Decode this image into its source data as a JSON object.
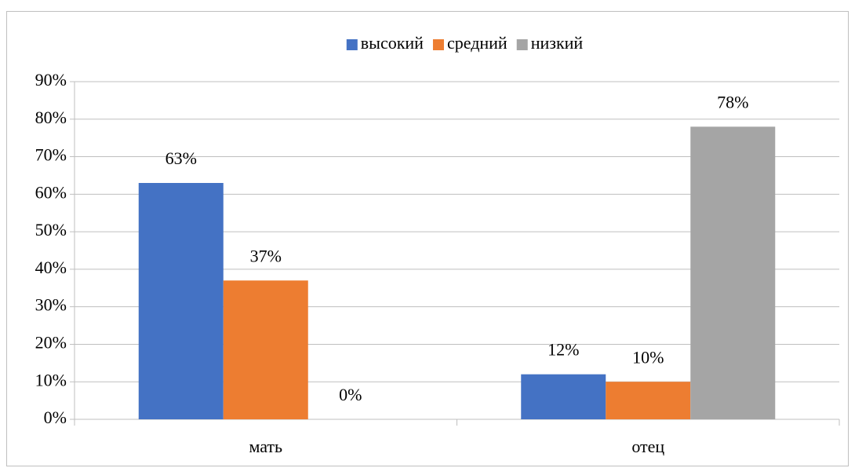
{
  "chart_data": {
    "type": "bar",
    "categories": [
      "мать",
      "отец"
    ],
    "series": [
      {
        "name": "высокий",
        "color": "#4472c4",
        "values": [
          63,
          12
        ],
        "value_labels": [
          "63%",
          "12%"
        ]
      },
      {
        "name": "средний",
        "color": "#ed7d31",
        "values": [
          37,
          10
        ],
        "value_labels": [
          "37%",
          "10%"
        ]
      },
      {
        "name": "низкий",
        "color": "#a5a5a5",
        "values": [
          0,
          78
        ],
        "value_labels": [
          "0%",
          "78%"
        ]
      }
    ],
    "ylim": [
      0,
      90
    ],
    "yticks": [
      {
        "value": 0,
        "label": "0%"
      },
      {
        "value": 10,
        "label": "10%"
      },
      {
        "value": 20,
        "label": "20%"
      },
      {
        "value": 30,
        "label": "30%"
      },
      {
        "value": 40,
        "label": "40%"
      },
      {
        "value": 50,
        "label": "50%"
      },
      {
        "value": 60,
        "label": "60%"
      },
      {
        "value": 70,
        "label": "70%"
      },
      {
        "value": 80,
        "label": "80%"
      },
      {
        "value": 90,
        "label": "90%"
      }
    ],
    "grid": true,
    "legend": "top"
  }
}
